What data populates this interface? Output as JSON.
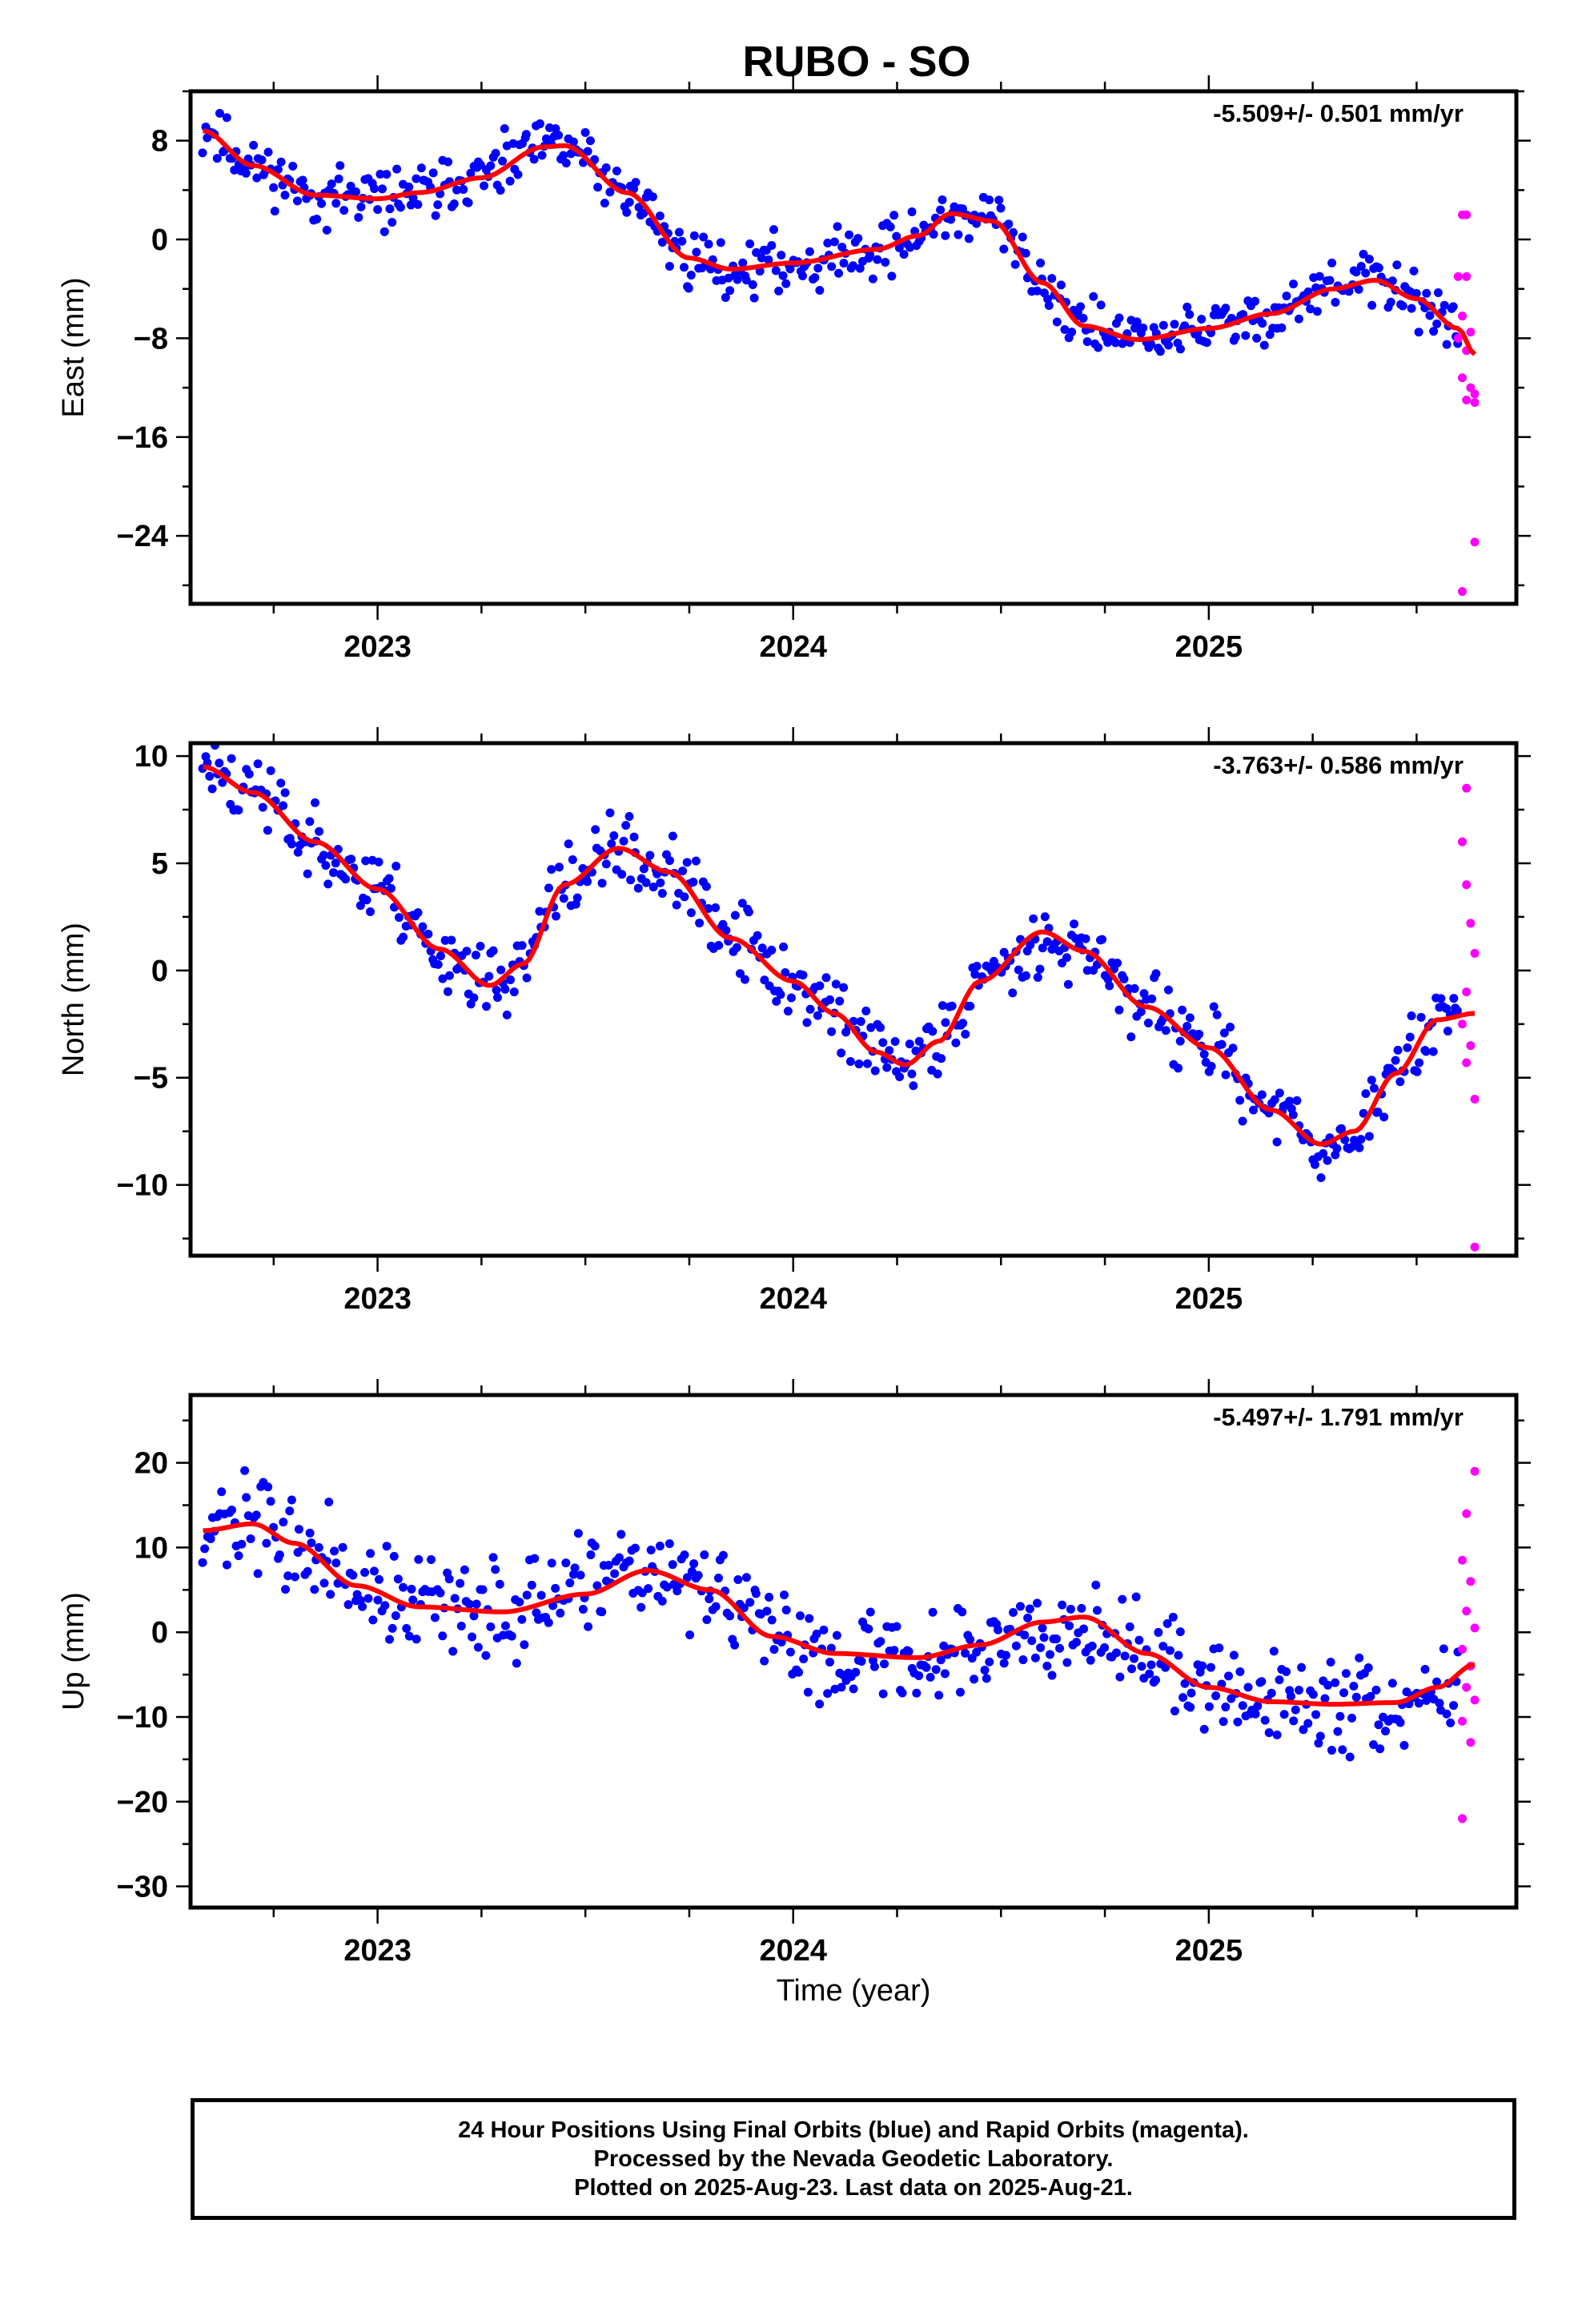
{
  "page_title": "RUBO - SO",
  "x_label": "Time (year)",
  "footer": {
    "line1": "24 Hour Positions Using Final Orbits (blue) and Rapid Orbits (magenta).",
    "line2": "Processed by the Nevada Geodetic Laboratory.",
    "line3": "Plotted on 2025-Aug-23. Last data on 2025-Aug-21."
  },
  "colors": {
    "final": "#0000ff",
    "rapid": "#ff00ff",
    "fit": "#ff0000",
    "frame": "#000000"
  },
  "chart_data": [
    {
      "type": "scatter",
      "ylabel": "East (mm)",
      "rate": "-5.509+/- 0.501 mm/yr",
      "xlim": [
        2022.55,
        2025.74
      ],
      "ylim": [
        -29.5,
        12.0
      ],
      "x_ticks": [
        2023,
        2024,
        2025
      ],
      "y_ticks": [
        8,
        0,
        -8,
        -16,
        -24
      ],
      "trend": [
        [
          2022.58,
          8.8
        ],
        [
          2022.7,
          6.0
        ],
        [
          2022.85,
          3.6
        ],
        [
          2023.0,
          3.3
        ],
        [
          2023.1,
          3.8
        ],
        [
          2023.25,
          5.0
        ],
        [
          2023.4,
          7.5
        ],
        [
          2023.45,
          7.6
        ],
        [
          2023.6,
          3.8
        ],
        [
          2023.75,
          -1.5
        ],
        [
          2023.85,
          -2.4
        ],
        [
          2024.0,
          -1.9
        ],
        [
          2024.2,
          -0.8
        ],
        [
          2024.3,
          0.3
        ],
        [
          2024.38,
          2.1
        ],
        [
          2024.48,
          1.5
        ],
        [
          2024.6,
          -3.5
        ],
        [
          2024.7,
          -7.0
        ],
        [
          2024.83,
          -8.1
        ],
        [
          2025.0,
          -7.2
        ],
        [
          2025.15,
          -6.0
        ],
        [
          2025.3,
          -4.0
        ],
        [
          2025.4,
          -3.3
        ],
        [
          2025.5,
          -4.8
        ],
        [
          2025.6,
          -7.2
        ],
        [
          2025.64,
          -9.3
        ]
      ],
      "final_series": {
        "x0": 2022.58,
        "x1": 2025.6,
        "n": 520,
        "noise": 1.6,
        "seed": 11
      },
      "rapid_points": [
        [
          2025.61,
          2.0
        ],
        [
          2025.62,
          2.0
        ],
        [
          2025.6,
          -3.0
        ],
        [
          2025.62,
          -3.0
        ],
        [
          2025.61,
          -6.2
        ],
        [
          2025.63,
          -7.5
        ],
        [
          2025.6,
          -8.0
        ],
        [
          2025.62,
          -9.0
        ],
        [
          2025.61,
          -11.2
        ],
        [
          2025.63,
          -12.0
        ],
        [
          2025.64,
          -12.5
        ],
        [
          2025.62,
          -13.0
        ],
        [
          2025.64,
          -13.2
        ],
        [
          2025.61,
          -28.5
        ],
        [
          2025.64,
          -24.5
        ]
      ]
    },
    {
      "type": "scatter",
      "ylabel": "North (mm)",
      "rate": "-3.763+/- 0.586 mm/yr",
      "xlim": [
        2022.55,
        2025.74
      ],
      "ylim": [
        -13.3,
        10.6
      ],
      "x_ticks": [
        2023,
        2024,
        2025
      ],
      "y_ticks": [
        10,
        5,
        0,
        -5,
        -10
      ],
      "trend": [
        [
          2022.58,
          9.5
        ],
        [
          2022.7,
          8.3
        ],
        [
          2022.85,
          6.0
        ],
        [
          2023.0,
          3.8
        ],
        [
          2023.15,
          1.0
        ],
        [
          2023.27,
          -0.7
        ],
        [
          2023.35,
          0.3
        ],
        [
          2023.45,
          4.0
        ],
        [
          2023.58,
          5.7
        ],
        [
          2023.7,
          4.6
        ],
        [
          2023.85,
          1.5
        ],
        [
          2024.0,
          -0.5
        ],
        [
          2024.1,
          -2.0
        ],
        [
          2024.2,
          -3.8
        ],
        [
          2024.27,
          -4.4
        ],
        [
          2024.35,
          -3.3
        ],
        [
          2024.45,
          -0.5
        ],
        [
          2024.6,
          1.8
        ],
        [
          2024.7,
          0.9
        ],
        [
          2024.85,
          -1.7
        ],
        [
          2025.0,
          -3.6
        ],
        [
          2025.15,
          -6.5
        ],
        [
          2025.27,
          -8.1
        ],
        [
          2025.35,
          -7.5
        ],
        [
          2025.45,
          -4.8
        ],
        [
          2025.55,
          -2.3
        ],
        [
          2025.64,
          -2.0
        ]
      ],
      "final_series": {
        "x0": 2022.58,
        "x1": 2025.6,
        "n": 520,
        "noise": 1.2,
        "seed": 23
      },
      "rapid_points": [
        [
          2025.62,
          8.5
        ],
        [
          2025.61,
          6.0
        ],
        [
          2025.62,
          4.0
        ],
        [
          2025.63,
          2.2
        ],
        [
          2025.64,
          0.8
        ],
        [
          2025.62,
          -1.0
        ],
        [
          2025.61,
          -2.5
        ],
        [
          2025.63,
          -3.5
        ],
        [
          2025.62,
          -4.3
        ],
        [
          2025.64,
          -6.0
        ],
        [
          2025.64,
          -12.9
        ]
      ]
    },
    {
      "type": "scatter",
      "ylabel": "Up (mm)",
      "rate": "-5.497+/- 1.791 mm/yr",
      "xlim": [
        2022.55,
        2025.74
      ],
      "ylim": [
        -32.5,
        28.0
      ],
      "x_ticks": [
        2023,
        2024,
        2025
      ],
      "y_ticks": [
        20,
        10,
        0,
        -10,
        -20,
        -30
      ],
      "trend": [
        [
          2022.58,
          12.0
        ],
        [
          2022.7,
          12.8
        ],
        [
          2022.8,
          10.5
        ],
        [
          2022.95,
          5.5
        ],
        [
          2023.1,
          3.0
        ],
        [
          2023.3,
          2.4
        ],
        [
          2023.5,
          4.5
        ],
        [
          2023.65,
          7.3
        ],
        [
          2023.8,
          5.0
        ],
        [
          2023.95,
          -0.5
        ],
        [
          2024.1,
          -2.5
        ],
        [
          2024.3,
          -3.0
        ],
        [
          2024.45,
          -1.5
        ],
        [
          2024.6,
          1.2
        ],
        [
          2024.7,
          1.8
        ],
        [
          2024.85,
          -2.5
        ],
        [
          2025.0,
          -6.5
        ],
        [
          2025.15,
          -8.2
        ],
        [
          2025.3,
          -8.5
        ],
        [
          2025.45,
          -8.3
        ],
        [
          2025.55,
          -6.5
        ],
        [
          2025.64,
          -3.8
        ]
      ],
      "final_series": {
        "x0": 2022.58,
        "x1": 2025.6,
        "n": 520,
        "noise": 4.0,
        "seed": 37
      },
      "rapid_points": [
        [
          2025.64,
          19.0
        ],
        [
          2025.62,
          14.0
        ],
        [
          2025.61,
          8.5
        ],
        [
          2025.63,
          6.0
        ],
        [
          2025.62,
          2.5
        ],
        [
          2025.64,
          0.5
        ],
        [
          2025.61,
          -2.0
        ],
        [
          2025.63,
          -4.0
        ],
        [
          2025.62,
          -6.5
        ],
        [
          2025.64,
          -8.0
        ],
        [
          2025.61,
          -10.5
        ],
        [
          2025.63,
          -13.0
        ],
        [
          2025.61,
          -22.0
        ]
      ]
    }
  ]
}
